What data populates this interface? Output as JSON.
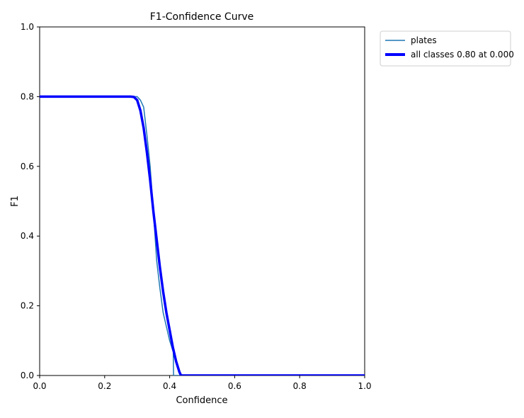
{
  "chart_data": {
    "type": "line",
    "title": "F1-Confidence Curve",
    "xlabel": "Confidence",
    "ylabel": "F1",
    "xlim": [
      0.0,
      1.0
    ],
    "ylim": [
      0.0,
      1.0
    ],
    "xticks": [
      "0.0",
      "0.2",
      "0.4",
      "0.6",
      "0.8",
      "1.0"
    ],
    "yticks": [
      "0.0",
      "0.2",
      "0.4",
      "0.6",
      "0.8",
      "1.0"
    ],
    "grid": false,
    "legend_position": "outside-top-right",
    "series": [
      {
        "name": "plates",
        "color": "#1f77b4",
        "x": [
          0.0,
          0.2,
          0.3,
          0.31,
          0.32,
          0.33,
          0.34,
          0.35,
          0.36,
          0.37,
          0.38,
          0.39,
          0.4,
          0.41,
          0.411,
          0.412,
          0.43,
          0.6,
          0.8,
          1.0
        ],
        "y": [
          0.8,
          0.8,
          0.8,
          0.79,
          0.77,
          0.69,
          0.6,
          0.47,
          0.33,
          0.25,
          0.18,
          0.14,
          0.1,
          0.07,
          0.07,
          0.0,
          0.0,
          0.0,
          0.0,
          0.0
        ]
      },
      {
        "name": "all classes 0.80 at 0.000",
        "color": "#0000ff",
        "x": [
          0.0,
          0.2,
          0.28,
          0.29,
          0.3,
          0.31,
          0.32,
          0.33,
          0.34,
          0.35,
          0.36,
          0.37,
          0.38,
          0.39,
          0.4,
          0.41,
          0.42,
          0.43,
          0.435,
          0.44,
          0.6,
          0.8,
          1.0
        ],
        "y": [
          0.8,
          0.8,
          0.8,
          0.799,
          0.79,
          0.76,
          0.71,
          0.64,
          0.56,
          0.47,
          0.39,
          0.31,
          0.24,
          0.18,
          0.13,
          0.08,
          0.04,
          0.01,
          0.0,
          0.0,
          0.0,
          0.0,
          0.0
        ]
      }
    ]
  }
}
